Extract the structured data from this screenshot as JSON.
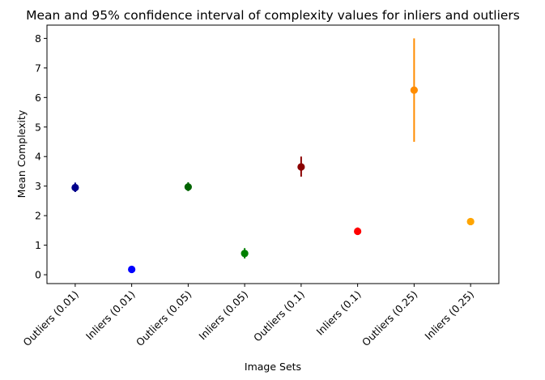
{
  "chart_data": {
    "type": "errorbar",
    "title": "Mean and 95% confidence interval of complexity values for inliers and outliers",
    "xlabel": "Image Sets",
    "ylabel": "Mean Complexity",
    "ylim": [
      -0.3,
      8.45
    ],
    "yticks": [
      0,
      1,
      2,
      3,
      4,
      5,
      6,
      7,
      8
    ],
    "grid": false,
    "categories": [
      "Outliers (0.01)",
      "Inliers (0.01)",
      "Outliers (0.05)",
      "Inliers (0.05)",
      "Outliers (0.1)",
      "Inliers (0.1)",
      "Outliers (0.25)",
      "Inliers (0.25)"
    ],
    "points": [
      {
        "label": "Outliers (0.01)",
        "mean": 2.95,
        "ci_low": 2.8,
        "ci_high": 3.12,
        "color": "#00008b"
      },
      {
        "label": "Inliers (0.01)",
        "mean": 0.18,
        "ci_low": 0.12,
        "ci_high": 0.24,
        "color": "#0000ff"
      },
      {
        "label": "Outliers (0.05)",
        "mean": 2.97,
        "ci_low": 2.83,
        "ci_high": 3.13,
        "color": "#006400"
      },
      {
        "label": "Inliers (0.05)",
        "mean": 0.72,
        "ci_low": 0.55,
        "ci_high": 0.9,
        "color": "#008000"
      },
      {
        "label": "Outliers (0.1)",
        "mean": 3.65,
        "ci_low": 3.32,
        "ci_high": 4.0,
        "color": "#8b0000"
      },
      {
        "label": "Inliers (0.1)",
        "mean": 1.47,
        "ci_low": 1.35,
        "ci_high": 1.6,
        "color": "#ff0000"
      },
      {
        "label": "Outliers (0.25)",
        "mean": 6.25,
        "ci_low": 4.5,
        "ci_high": 8.0,
        "color": "#ff8c00"
      },
      {
        "label": "Inliers (0.25)",
        "mean": 1.8,
        "ci_low": 1.7,
        "ci_high": 1.9,
        "color": "#ffa500"
      }
    ]
  }
}
